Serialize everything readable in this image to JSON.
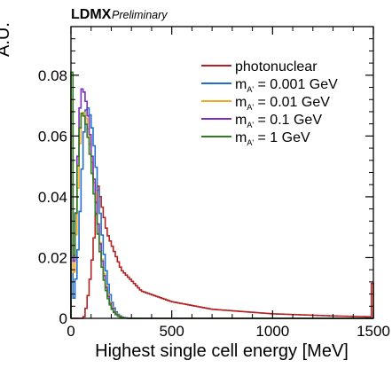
{
  "chart_data": {
    "type": "histogram",
    "experiment_label": "LDMX",
    "status_label": "Preliminary",
    "xlabel": "Highest single cell energy [MeV]",
    "ylabel": "A.U.",
    "xlim": [
      0,
      1500
    ],
    "ylim": [
      0,
      0.096
    ],
    "x_ticks": [
      0,
      500,
      1000,
      1500
    ],
    "y_ticks": [
      0,
      0.02,
      0.04,
      0.06,
      0.08
    ],
    "y_tick_labels": [
      "0",
      "0.02",
      "0.04",
      "0.06",
      "0.08"
    ],
    "grid": false,
    "legend_position": "top-right",
    "series": [
      {
        "name": "photonuclear",
        "label_main": "photonuclear",
        "label_sub": "",
        "label_rest": "",
        "color": "#b22222",
        "shape": {
          "kind": "skewed",
          "onset": 60,
          "rise_end": 135,
          "peak": 0.0435,
          "tail": [
            [
              135,
              0.0435
            ],
            [
              180,
              0.028
            ],
            [
              250,
              0.016
            ],
            [
              350,
              0.009
            ],
            [
              500,
              0.0055
            ],
            [
              700,
              0.003
            ],
            [
              1000,
              0.0015
            ],
            [
              1300,
              0.0008
            ],
            [
              1490,
              0.0005
            ]
          ],
          "last_bin": 0.0115
        }
      },
      {
        "name": "mA' = 0.001 GeV",
        "label_main": "m",
        "label_sub": "A'",
        "label_rest": " = 0.001 GeV",
        "color": "#1f6fd1",
        "shape": {
          "kind": "peak",
          "mode": 80,
          "peak": 0.0695,
          "sigma_left": 30,
          "sigma_right": 55,
          "spike": 0.044
        }
      },
      {
        "name": "mA' = 0.01 GeV",
        "label_main": "m",
        "label_sub": "A'",
        "label_rest": " = 0.01 GeV",
        "color": "#f5a623",
        "shape": {
          "kind": "peak",
          "mode": 60,
          "peak": 0.068,
          "sigma_left": 26,
          "sigma_right": 60,
          "spike": 0.072
        }
      },
      {
        "name": "mA' = 0.1 GeV",
        "label_main": "m",
        "label_sub": "A'",
        "label_rest": " = 0.1 GeV",
        "color": "#7b2fbe",
        "shape": {
          "kind": "peak",
          "mode": 55,
          "peak": 0.0755,
          "sigma_left": 24,
          "sigma_right": 60,
          "spike": 0.068
        }
      },
      {
        "name": "mA' = 1 GeV",
        "label_main": "m",
        "label_sub": "A'",
        "label_rest": " = 1 GeV",
        "color": "#2e7d1f",
        "shape": {
          "kind": "peak",
          "mode": 55,
          "peak": 0.0675,
          "sigma_left": 26,
          "sigma_right": 60,
          "spike": 0.081
        }
      }
    ]
  }
}
